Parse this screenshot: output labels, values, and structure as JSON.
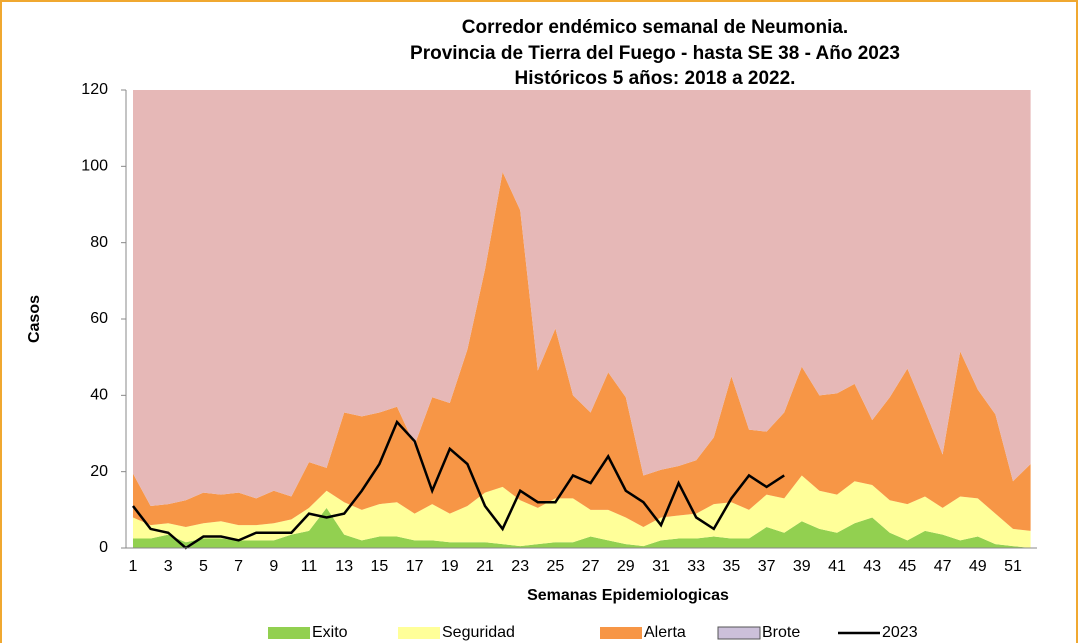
{
  "chart_data": {
    "type": "area",
    "stacked": true,
    "title": [
      "Corredor endémico semanal de Neumonia.",
      "Provincia de Tierra del Fuego - hasta SE 38 - Año 2023",
      "Históricos 5 años: 2018 a 2022."
    ],
    "y_label": "Casos",
    "x_label": "Semanas Epidemiologicas",
    "categories": [
      1,
      null,
      3,
      null,
      5,
      null,
      7,
      null,
      9,
      null,
      11,
      null,
      13,
      null,
      15,
      null,
      17,
      null,
      19,
      null,
      21,
      null,
      23,
      null,
      25,
      null,
      27,
      null,
      29,
      null,
      31,
      null,
      33,
      null,
      35,
      null,
      37,
      null,
      39,
      null,
      41,
      null,
      43,
      null,
      45,
      null,
      47,
      null,
      49,
      null,
      51,
      null
    ],
    "ylim": [
      0,
      120
    ],
    "yticks": [
      0,
      20,
      40,
      60,
      80,
      100,
      120
    ],
    "grid": false,
    "legend": "bottom",
    "series": [
      {
        "name": "Exito",
        "color": "#92d050",
        "values": [
          2.5,
          2.5,
          3.5,
          1.5,
          2.5,
          2.5,
          2,
          2,
          2,
          3.5,
          4.5,
          10.5,
          3.5,
          2,
          3,
          3,
          2,
          2,
          1.5,
          1.5,
          1.5,
          1,
          0.5,
          1,
          1.5,
          1.5,
          3,
          2,
          1,
          0.5,
          2,
          2.5,
          2.5,
          3,
          2.5,
          2.5,
          5.5,
          4,
          7,
          5,
          4,
          6.5,
          8,
          4,
          2,
          4.5,
          3.5,
          2,
          3,
          1,
          0.5,
          0
        ]
      },
      {
        "name": "Seguridad",
        "color": "#ffff99",
        "values": [
          5.5,
          3.5,
          3,
          4,
          4,
          4.5,
          4,
          4,
          4.5,
          4,
          6,
          4.5,
          8.5,
          8,
          8.5,
          9,
          7,
          9.5,
          7.5,
          9.5,
          13,
          15,
          12,
          9.5,
          11.5,
          11.5,
          7,
          8,
          7,
          5,
          6,
          6,
          6.5,
          8.5,
          9.5,
          7.5,
          8.5,
          9,
          12,
          10,
          10,
          11,
          8.5,
          8.5,
          9.5,
          9,
          7,
          11.5,
          10,
          8,
          4.5,
          4.5
        ]
      },
      {
        "name": "Alerta",
        "color": "#f79646",
        "values": [
          11.5,
          5,
          5,
          7,
          8,
          7,
          8.5,
          7,
          8.5,
          6,
          12,
          6,
          23.5,
          24.5,
          24,
          25,
          18,
          28,
          29,
          41,
          58.5,
          82.5,
          76,
          36,
          44.5,
          27,
          25.5,
          36,
          31.5,
          13.5,
          12.5,
          13,
          14,
          17.5,
          33,
          21,
          16.5,
          22.5,
          28.5,
          25,
          26.5,
          25.5,
          17,
          27,
          35.5,
          22.5,
          14,
          38,
          28.5,
          26,
          12.5,
          17.5
        ]
      },
      {
        "name": "Brote",
        "color": "#e6b8b7",
        "legend_color": "#ccc0da",
        "values": [
          100.5,
          109,
          108.5,
          107.5,
          105.5,
          106,
          105.5,
          107,
          105,
          106.5,
          97.5,
          99,
          84.5,
          85.5,
          84.5,
          83,
          93,
          80.5,
          82,
          68,
          47,
          21.5,
          31.5,
          73.5,
          62.5,
          80,
          84.5,
          74,
          80.5,
          101,
          99.5,
          98.5,
          97,
          91,
          75,
          89,
          89.5,
          84.5,
          72.5,
          80,
          79.5,
          77,
          86.5,
          80.5,
          73,
          84,
          95.5,
          68.5,
          78.5,
          85,
          102.5,
          98
        ]
      },
      {
        "name": "2023",
        "type": "line",
        "color": "#000000",
        "values": [
          11,
          5,
          4,
          0,
          3,
          3,
          2,
          4,
          4,
          4,
          9,
          8,
          9,
          15,
          22,
          33,
          28,
          15,
          26,
          22,
          11,
          5,
          15,
          12,
          12,
          19,
          17,
          24,
          15,
          12,
          6,
          17,
          8,
          5,
          13,
          19,
          16,
          19,
          null,
          null,
          null,
          null,
          null,
          null,
          null,
          null,
          null,
          null,
          null,
          null,
          null,
          null
        ]
      }
    ]
  }
}
